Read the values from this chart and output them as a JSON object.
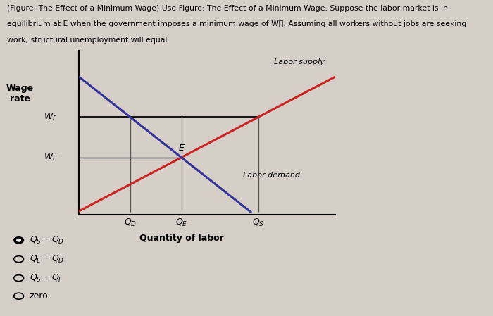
{
  "qD": 2.5,
  "qE": 3.5,
  "qS": 5.0,
  "wE": 3.2,
  "wF": 5.2,
  "xlim": [
    1.5,
    6.5
  ],
  "ylim": [
    0.5,
    8.5
  ],
  "supply_color": "#cc2222",
  "demand_color": "#333399",
  "hline_color": "#111111",
  "vline_color": "#555555",
  "supply_label": "Labor supply",
  "demand_label": "Labor demand",
  "E_label": "E",
  "bg_color": "#d6cfc8",
  "line1": "(Figure: The Effect of a Minimum Wage) Use Figure: The Effect of a Minimum Wage. Suppose the labor market is in",
  "line2": "equilibrium at E when the government imposes a minimum wage of W₟. Assuming all workers without jobs are seeking",
  "line3": "work, structural unemployment will equal:",
  "answer_options": [
    {
      "label": "$Q_S - Q_D$",
      "selected": true
    },
    {
      "label": "$Q_E - Q_D$",
      "selected": false
    },
    {
      "label": "$Q_S - Q_F$",
      "selected": false
    },
    {
      "label": "zero.",
      "selected": false
    }
  ]
}
